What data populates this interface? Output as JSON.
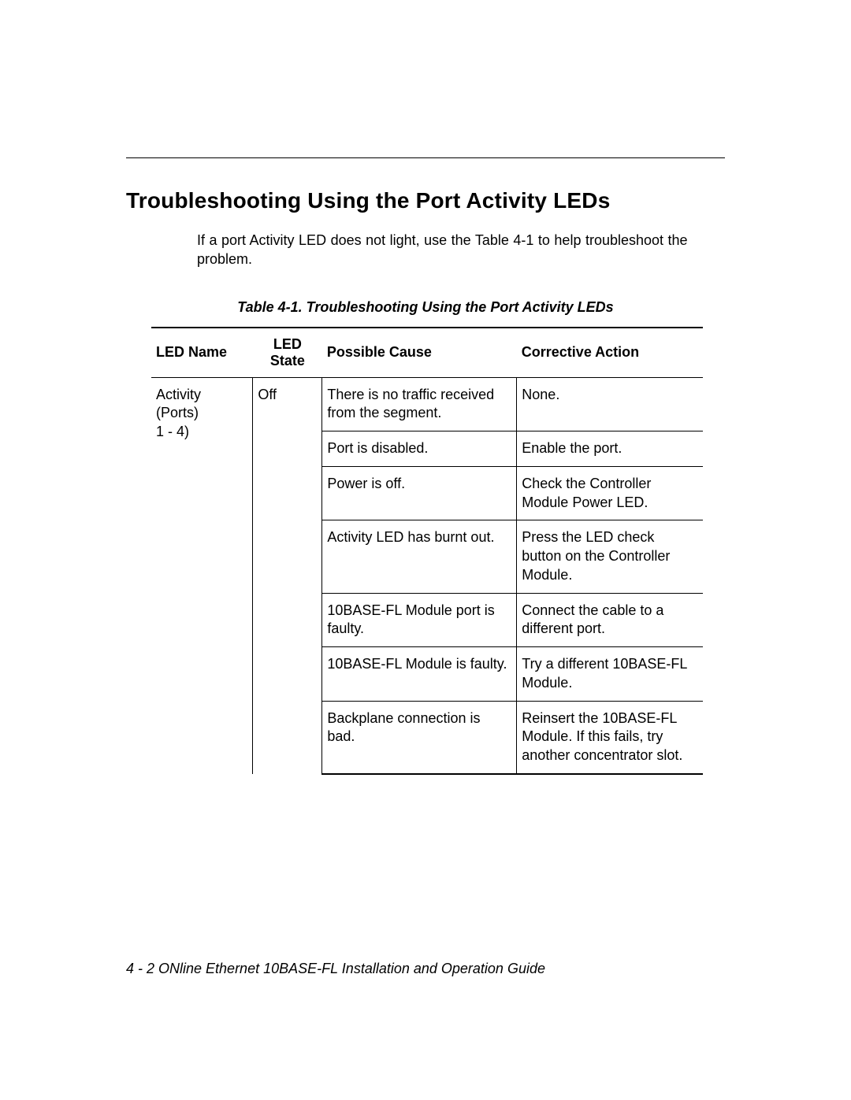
{
  "section_title": "Troubleshooting Using the Port Activity LEDs",
  "intro_text": "If a port Activity LED does not light, use the Table 4-1 to help troubleshoot the problem.",
  "table_caption": "Table 4-1.  Troubleshooting Using the Port Activity LEDs",
  "columns": {
    "led_name": "LED Name",
    "led_state": "LED State",
    "possible_cause": "Possible Cause",
    "corrective_action": "Corrective Action"
  },
  "led_name_line1": "Activity",
  "led_name_line2": "(Ports)",
  "led_name_line3": "1 - 4)",
  "led_state": "Off",
  "rows": [
    {
      "cause": "There is no traffic received from the segment.",
      "action": "None."
    },
    {
      "cause": "Port is disabled.",
      "action": "Enable the port."
    },
    {
      "cause": "Power is off.",
      "action": "Check the Controller Module Power LED."
    },
    {
      "cause": "Activity LED has burnt out.",
      "action": "Press the LED check button on the Controller Module."
    },
    {
      "cause": "10BASE-FL Module port is faulty.",
      "action": "Connect the cable to a different port."
    },
    {
      "cause": "10BASE-FL Module is faulty.",
      "action": "Try a different 10BASE-FL Module."
    },
    {
      "cause": "Backplane connection is bad.",
      "action": "Reinsert the 10BASE-FL Module. If this fails, try another concentrator slot."
    }
  ],
  "footer": "4 - 2  ONline Ethernet 10BASE-FL Installation and Operation Guide"
}
